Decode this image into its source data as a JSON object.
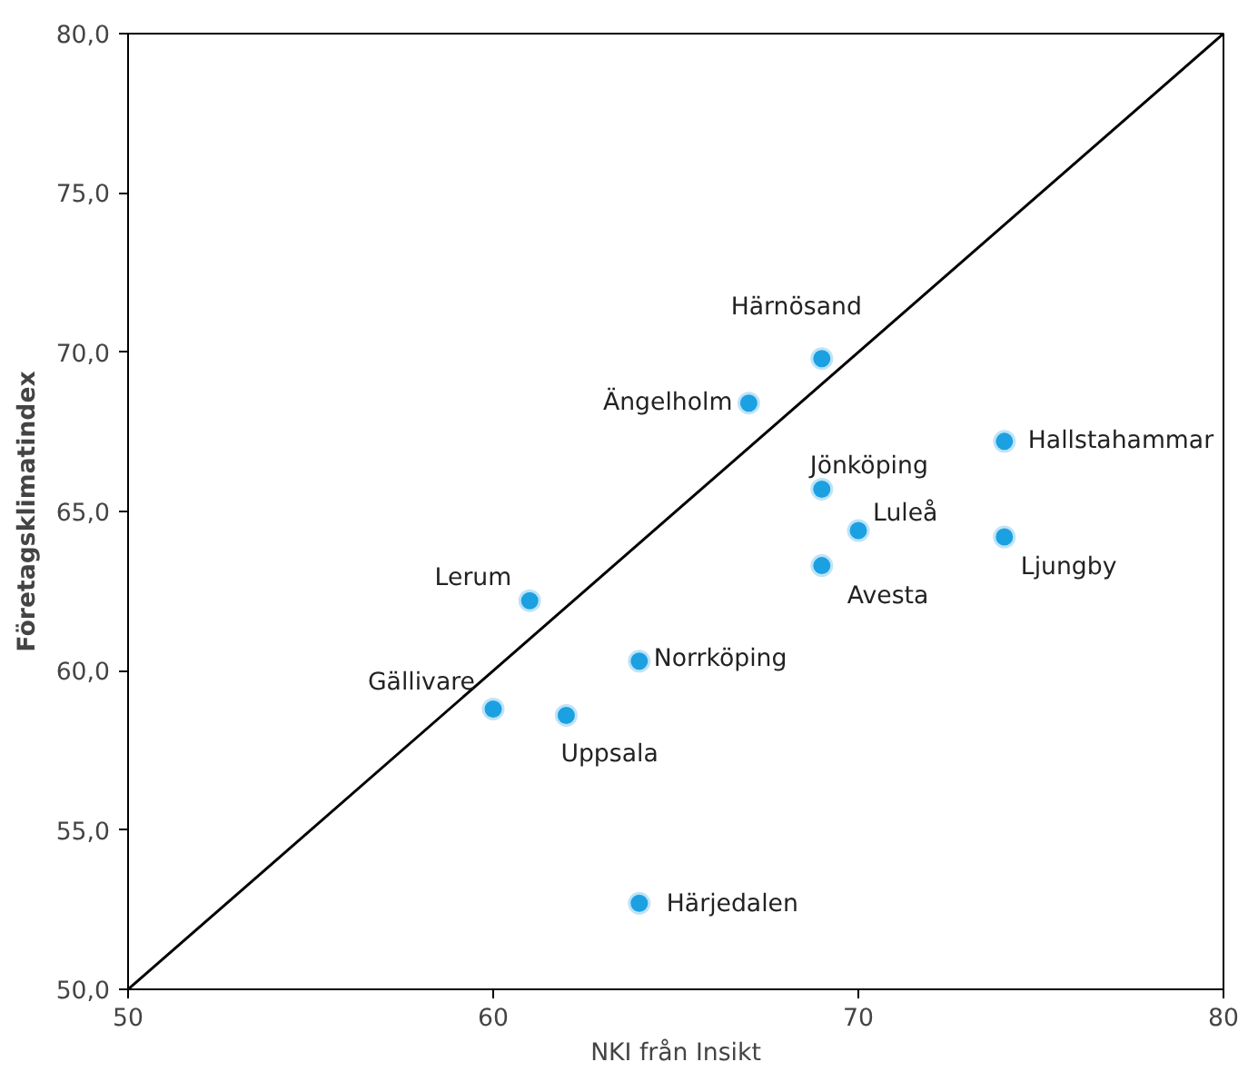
{
  "chart_data": {
    "type": "scatter",
    "xlabel": "NKI från Insikt",
    "ylabel": "Företagsklimatindex",
    "xlim": [
      50,
      80
    ],
    "xticks": [
      50,
      60,
      70,
      80
    ],
    "ylim": [
      50,
      80
    ],
    "yticks": [
      {
        "value": 50,
        "label": "50,0"
      },
      {
        "value": 55,
        "label": "55,0"
      },
      {
        "value": 60,
        "label": "60,0"
      },
      {
        "value": 65,
        "label": "65,0"
      },
      {
        "value": 70,
        "label": "70,0"
      },
      {
        "value": 75,
        "label": "75,0"
      },
      {
        "value": 80,
        "label": "80,0"
      }
    ],
    "grid": false,
    "marker": "circle",
    "series": [
      {
        "color": "#1ba1e2",
        "x": [
          69,
          67,
          74,
          69,
          70,
          74,
          69,
          61,
          64,
          60,
          62,
          64
        ],
        "values": [
          69.8,
          68.4,
          67.2,
          65.7,
          64.4,
          64.2,
          63.3,
          62.2,
          60.3,
          58.8,
          58.6,
          52.7
        ]
      },
      {
        "type": "line",
        "color": "#000000",
        "x": [
          50,
          80
        ],
        "values": [
          50,
          80
        ],
        "line_style": "solid",
        "marker": "none"
      }
    ],
    "annotations": [
      {
        "text": "Härnösand",
        "x": 69,
        "y": 69.8
      },
      {
        "text": "Ängelholm",
        "x": 67,
        "y": 68.4
      },
      {
        "text": "Hallstahammar",
        "x": 74,
        "y": 67.2
      },
      {
        "text": "Jönköping",
        "x": 69,
        "y": 65.7
      },
      {
        "text": "Luleå",
        "x": 70,
        "y": 64.4
      },
      {
        "text": "Ljungby",
        "x": 74,
        "y": 64.2
      },
      {
        "text": "Avesta",
        "x": 69,
        "y": 63.3
      },
      {
        "text": "Lerum",
        "x": 61,
        "y": 62.2
      },
      {
        "text": "Norrköping",
        "x": 64,
        "y": 60.3
      },
      {
        "text": "Gällivare",
        "x": 60,
        "y": 58.8
      },
      {
        "text": "Uppsala",
        "x": 62,
        "y": 58.6
      },
      {
        "text": "Härjedalen",
        "x": 64,
        "y": 52.7
      }
    ]
  }
}
